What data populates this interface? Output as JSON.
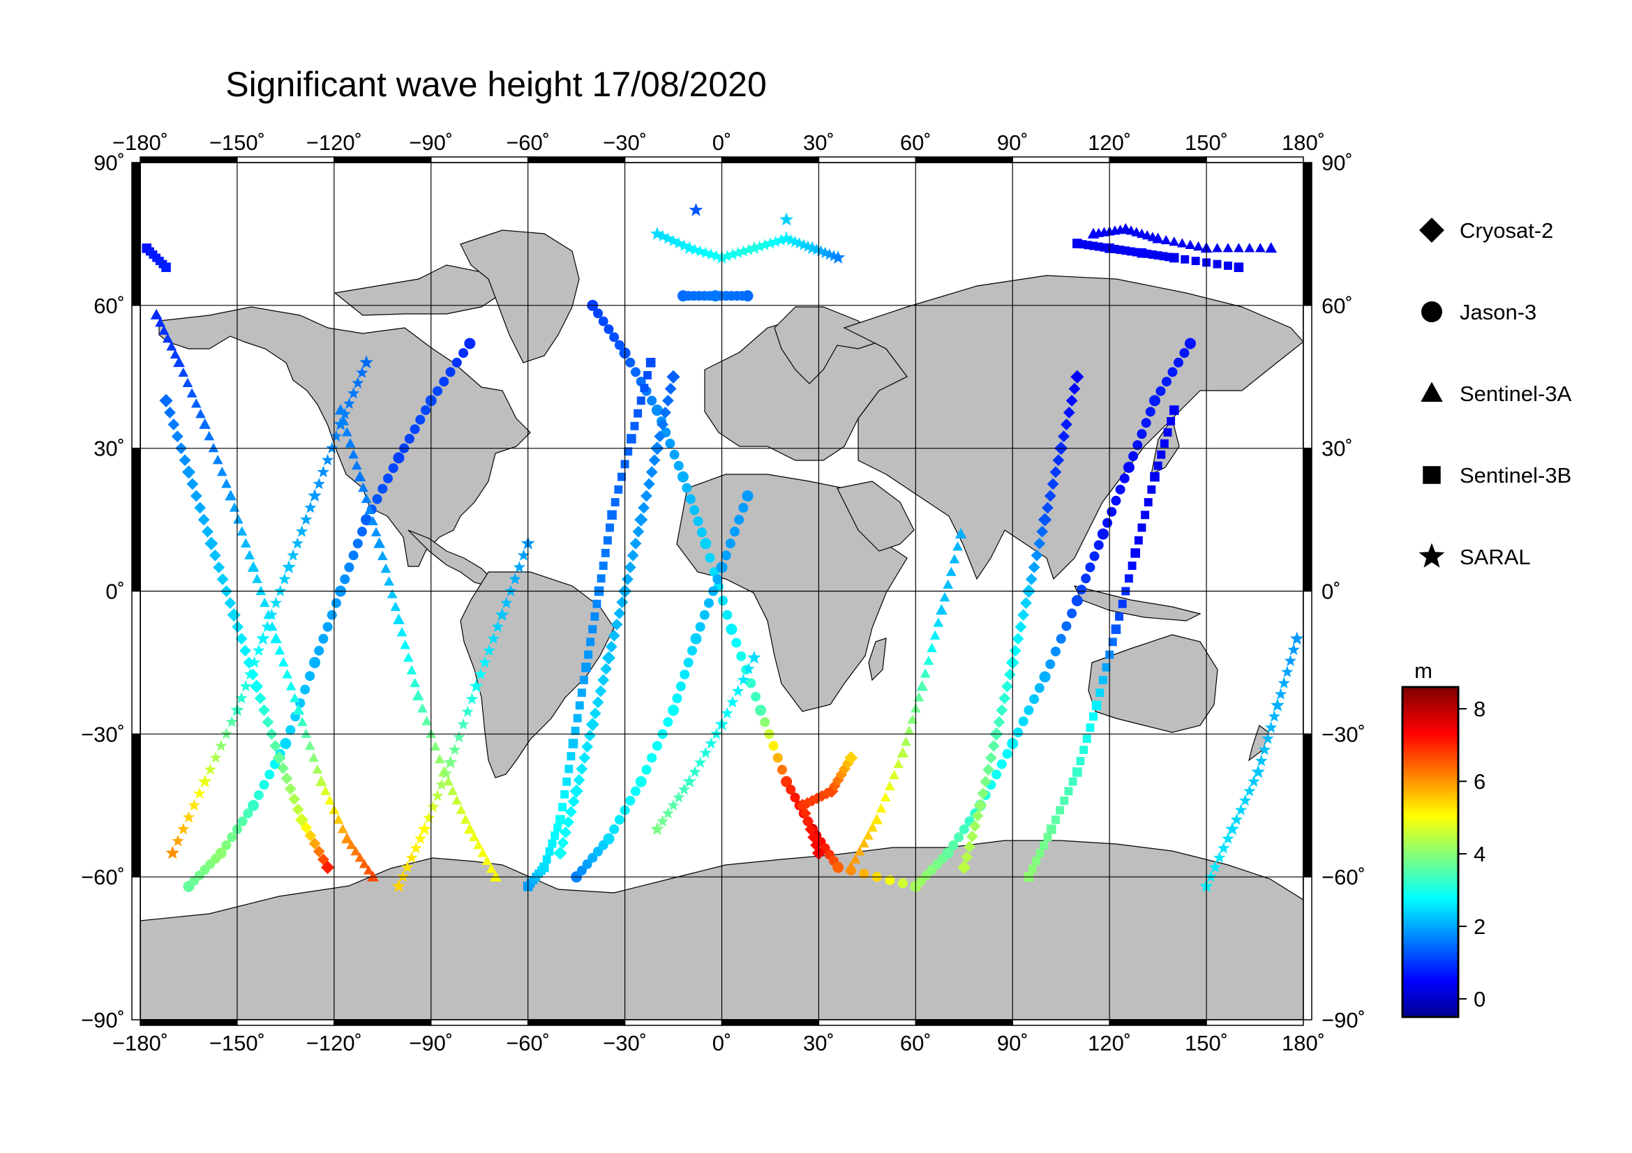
{
  "title": "Significant wave height 17/08/2020",
  "chart_data": {
    "type": "scatter",
    "title": "Significant wave height 17/08/2020",
    "projection": "equirectangular",
    "xlim": [
      -180,
      180
    ],
    "ylim": [
      -90,
      90
    ],
    "grid": true,
    "x_ticks": [
      -180,
      -150,
      -120,
      -90,
      -60,
      -30,
      0,
      30,
      60,
      90,
      120,
      150,
      180
    ],
    "y_ticks": [
      90,
      60,
      30,
      0,
      -30,
      -60,
      -90
    ],
    "x_tick_labels": [
      "−180˚",
      "−150˚",
      "−120˚",
      "−90˚",
      "−60˚",
      "−30˚",
      "0˚",
      "30˚",
      "60˚",
      "90˚",
      "120˚",
      "150˚",
      "180˚"
    ],
    "y_tick_labels": [
      "90˚",
      "60˚",
      "30˚",
      "0˚",
      "−30˚",
      "−60˚",
      "−90˚"
    ],
    "colorbar": {
      "unit": "m",
      "range": [
        -0.5,
        8.6
      ],
      "ticks": [
        8,
        6,
        4,
        2,
        0
      ],
      "colormap": "jet"
    },
    "legend": {
      "placement": "right",
      "entries": [
        {
          "name": "Cryosat-2",
          "marker": "diamond"
        },
        {
          "name": "Jason-3",
          "marker": "circle"
        },
        {
          "name": "Sentinel-3A",
          "marker": "triangle"
        },
        {
          "name": "Sentinel-3B",
          "marker": "square"
        },
        {
          "name": "SARAL",
          "marker": "star"
        }
      ]
    },
    "series": [
      {
        "name": "Jason-3",
        "marker": "circle",
        "points": [
          [
            -165,
            -62,
            3.8
          ],
          [
            -155,
            -55,
            4.2
          ],
          [
            -145,
            -45,
            3.4
          ],
          [
            -135,
            -32,
            2.6
          ],
          [
            -126,
            -15,
            2.2
          ],
          [
            -118,
            0,
            2.0
          ],
          [
            -110,
            15,
            1.5
          ],
          [
            -100,
            28,
            1.2
          ],
          [
            -90,
            40,
            1.3
          ],
          [
            -78,
            52,
            1.0
          ],
          [
            -40,
            60,
            1.2
          ],
          [
            -30,
            50,
            1.4
          ],
          [
            -20,
            38,
            1.9
          ],
          [
            -12,
            24,
            2.2
          ],
          [
            -5,
            10,
            2.5
          ],
          [
            3,
            -8,
            2.8
          ],
          [
            12,
            -25,
            3.6
          ],
          [
            20,
            -40,
            7.0
          ],
          [
            28,
            -50,
            7.8
          ],
          [
            36,
            -58,
            6.6
          ],
          [
            60,
            -62,
            4.4
          ],
          [
            70,
            -55,
            3.8
          ],
          [
            80,
            -45,
            3.2
          ],
          [
            90,
            -32,
            2.8
          ],
          [
            100,
            -18,
            2.2
          ],
          [
            110,
            -2,
            1.3
          ],
          [
            118,
            12,
            0.8
          ],
          [
            126,
            26,
            0.7
          ],
          [
            134,
            40,
            0.9
          ],
          [
            145,
            52,
            0.8
          ],
          [
            -12,
            62,
            1.6
          ],
          [
            -2,
            62,
            1.7
          ],
          [
            8,
            62,
            1.6
          ],
          [
            -45,
            -60,
            1.8
          ],
          [
            -35,
            -52,
            2.6
          ],
          [
            -25,
            -40,
            3.0
          ],
          [
            -15,
            -25,
            2.9
          ],
          [
            -8,
            -10,
            2.5
          ],
          [
            0,
            5,
            2.1
          ],
          [
            8,
            20,
            2.0
          ]
        ]
      },
      {
        "name": "Sentinel-3A",
        "marker": "triangle",
        "points": [
          [
            -175,
            58,
            1.0
          ],
          [
            -168,
            48,
            1.2
          ],
          [
            -160,
            35,
            1.6
          ],
          [
            -152,
            20,
            2.0
          ],
          [
            -145,
            5,
            2.4
          ],
          [
            -138,
            -10,
            2.8
          ],
          [
            -131,
            -25,
            3.2
          ],
          [
            -124,
            -40,
            4.6
          ],
          [
            -116,
            -52,
            6.2
          ],
          [
            -108,
            -60,
            6.8
          ],
          [
            -70,
            -60,
            5.2
          ],
          [
            -78,
            -50,
            5.0
          ],
          [
            -86,
            -38,
            4.4
          ],
          [
            -94,
            -22,
            3.4
          ],
          [
            -100,
            -6,
            2.6
          ],
          [
            -106,
            10,
            2.0
          ],
          [
            -112,
            24,
            1.7
          ],
          [
            -118,
            38,
            1.8
          ],
          [
            40,
            -58,
            6.2
          ],
          [
            48,
            -48,
            5.4
          ],
          [
            56,
            -34,
            4.6
          ],
          [
            62,
            -20,
            3.6
          ],
          [
            68,
            -4,
            2.4
          ],
          [
            74,
            12,
            2.2
          ],
          [
            115,
            75,
            0.6
          ],
          [
            125,
            76,
            0.5
          ],
          [
            135,
            74,
            0.6
          ],
          [
            150,
            72,
            0.5
          ],
          [
            170,
            72,
            0.5
          ]
        ]
      },
      {
        "name": "Sentinel-3B",
        "marker": "square",
        "points": [
          [
            -178,
            72,
            0.8
          ],
          [
            -172,
            68,
            0.9
          ],
          [
            -60,
            -62,
            2.0
          ],
          [
            -55,
            -58,
            2.6
          ],
          [
            -50,
            -48,
            3.0
          ],
          [
            -46,
            -32,
            2.4
          ],
          [
            -42,
            -16,
            2.0
          ],
          [
            -38,
            0,
            1.8
          ],
          [
            -34,
            16,
            1.6
          ],
          [
            -28,
            32,
            1.5
          ],
          [
            -22,
            48,
            1.3
          ],
          [
            95,
            -60,
            4.2
          ],
          [
            102,
            -50,
            3.8
          ],
          [
            110,
            -38,
            3.4
          ],
          [
            116,
            -24,
            2.8
          ],
          [
            122,
            -8,
            1.4
          ],
          [
            128,
            8,
            0.6
          ],
          [
            134,
            24,
            0.5
          ],
          [
            140,
            38,
            0.6
          ],
          [
            110,
            73,
            0.5
          ],
          [
            120,
            72,
            0.5
          ],
          [
            130,
            71,
            0.6
          ],
          [
            140,
            70,
            0.5
          ],
          [
            160,
            68,
            0.5
          ]
        ]
      },
      {
        "name": "SARAL",
        "marker": "star",
        "points": [
          [
            -170,
            -55,
            6.2
          ],
          [
            -160,
            -40,
            5.0
          ],
          [
            -150,
            -25,
            3.4
          ],
          [
            -142,
            -10,
            2.8
          ],
          [
            -134,
            5,
            2.4
          ],
          [
            -126,
            20,
            2.0
          ],
          [
            -118,
            35,
            1.8
          ],
          [
            -110,
            48,
            1.6
          ],
          [
            -100,
            -62,
            5.6
          ],
          [
            -92,
            -50,
            5.2
          ],
          [
            -84,
            -36,
            4.0
          ],
          [
            -76,
            -20,
            3.0
          ],
          [
            -68,
            -5,
            2.4
          ],
          [
            -60,
            10,
            2.0
          ],
          [
            -20,
            75,
            2.6
          ],
          [
            -10,
            72,
            2.8
          ],
          [
            0,
            70,
            3.0
          ],
          [
            10,
            72,
            3.2
          ],
          [
            20,
            74,
            2.8
          ],
          [
            28,
            72,
            2.4
          ],
          [
            36,
            70,
            1.8
          ],
          [
            -8,
            80,
            1.4
          ],
          [
            20,
            78,
            2.5
          ],
          [
            -20,
            -50,
            4.0
          ],
          [
            -10,
            -40,
            3.4
          ],
          [
            0,
            -28,
            3.0
          ],
          [
            10,
            -14,
            2.6
          ],
          [
            150,
            -62,
            2.8
          ],
          [
            158,
            -50,
            2.6
          ],
          [
            166,
            -38,
            2.4
          ],
          [
            172,
            -24,
            2.2
          ],
          [
            178,
            -10,
            2.0
          ]
        ]
      },
      {
        "name": "Cryosat-2",
        "marker": "diamond",
        "points": [
          [
            -172,
            40,
            1.6
          ],
          [
            -165,
            25,
            2.0
          ],
          [
            -158,
            10,
            2.3
          ],
          [
            -151,
            -5,
            2.6
          ],
          [
            -144,
            -20,
            3.0
          ],
          [
            -137,
            -35,
            3.8
          ],
          [
            -130,
            -48,
            4.8
          ],
          [
            -122,
            -58,
            7.2
          ],
          [
            -50,
            -55,
            3.0
          ],
          [
            -45,
            -42,
            2.8
          ],
          [
            -40,
            -28,
            2.6
          ],
          [
            -35,
            -14,
            2.4
          ],
          [
            -30,
            0,
            2.2
          ],
          [
            -25,
            15,
            2.0
          ],
          [
            -20,
            30,
            1.8
          ],
          [
            -15,
            45,
            1.5
          ],
          [
            30,
            -55,
            7.5
          ],
          [
            25,
            -45,
            7.0
          ],
          [
            34,
            -42,
            6.8
          ],
          [
            40,
            -35,
            5.6
          ],
          [
            75,
            -58,
            4.6
          ],
          [
            80,
            -45,
            4.2
          ],
          [
            85,
            -30,
            3.6
          ],
          [
            90,
            -15,
            3.0
          ],
          [
            95,
            0,
            2.4
          ],
          [
            100,
            15,
            1.4
          ],
          [
            105,
            30,
            1.0
          ],
          [
            110,
            45,
            0.6
          ]
        ]
      }
    ]
  }
}
